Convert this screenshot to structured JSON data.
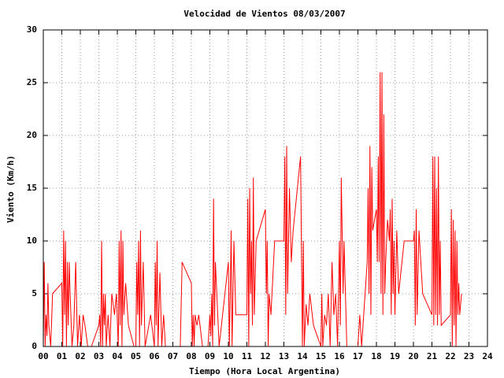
{
  "chart_data": {
    "type": "line",
    "title": "Velocidad de Vientos 08/03/2007",
    "x_label": "Tiempo (Hora Local Argentina)",
    "y_label": "Viento (Km/h)",
    "grid": true,
    "xlim": [
      0,
      24
    ],
    "ylim": [
      0,
      30
    ],
    "xticks": [
      {
        "value": 0,
        "label": "00"
      },
      {
        "value": 1,
        "label": "01"
      },
      {
        "value": 2,
        "label": "02"
      },
      {
        "value": 3,
        "label": "03"
      },
      {
        "value": 4,
        "label": "04"
      },
      {
        "value": 5,
        "label": "05"
      },
      {
        "value": 6,
        "label": "06"
      },
      {
        "value": 7,
        "label": "07"
      },
      {
        "value": 8,
        "label": "08"
      },
      {
        "value": 9,
        "label": "09"
      },
      10,
      11,
      12,
      13,
      14,
      15,
      16,
      17,
      18,
      19,
      20,
      21,
      22,
      23,
      24
    ],
    "yticks": [
      0,
      5,
      10,
      15,
      20,
      25,
      30
    ],
    "x": [
      0.0,
      0.05,
      0.1,
      0.15,
      0.2,
      0.25,
      0.3,
      0.4,
      0.5,
      1.0,
      1.05,
      1.1,
      1.15,
      1.2,
      1.25,
      1.3,
      1.35,
      1.4,
      1.45,
      1.55,
      1.65,
      1.75,
      1.85,
      1.95,
      2.05,
      2.15,
      2.25,
      2.4,
      2.6,
      3.0,
      3.05,
      3.1,
      3.15,
      3.2,
      3.25,
      3.3,
      3.35,
      3.4,
      3.5,
      3.6,
      3.7,
      3.85,
      3.95,
      4.05,
      4.1,
      4.15,
      4.2,
      4.25,
      4.3,
      4.35,
      4.45,
      4.6,
      4.9,
      5.0,
      5.05,
      5.1,
      5.15,
      5.2,
      5.25,
      5.3,
      5.4,
      5.5,
      5.8,
      6.0,
      6.05,
      6.1,
      6.15,
      6.2,
      6.3,
      6.4,
      6.5,
      6.6,
      7.0,
      7.4,
      7.5,
      8.0,
      8.05,
      8.1,
      8.15,
      8.2,
      8.3,
      8.4,
      8.6,
      8.9,
      9.0,
      9.05,
      9.1,
      9.15,
      9.2,
      9.25,
      9.3,
      9.5,
      10.0,
      10.05,
      10.1,
      10.15,
      10.2,
      10.3,
      10.4,
      10.6,
      11.0,
      11.05,
      11.1,
      11.15,
      11.2,
      11.25,
      11.3,
      11.35,
      11.4,
      11.5,
      12.0,
      12.05,
      12.1,
      12.15,
      12.2,
      12.3,
      12.5,
      13.0,
      13.05,
      13.1,
      13.15,
      13.2,
      13.3,
      13.4,
      13.5,
      13.9,
      14.0,
      14.05,
      14.1,
      14.2,
      14.3,
      14.4,
      14.6,
      15.0,
      15.05,
      15.1,
      15.2,
      15.3,
      15.4,
      15.5,
      15.6,
      15.7,
      15.8,
      15.9,
      16.0,
      16.05,
      16.1,
      16.2,
      16.25,
      16.4,
      17.0,
      17.1,
      17.2,
      17.5,
      17.55,
      17.6,
      17.65,
      17.7,
      17.75,
      17.8,
      18.0,
      18.05,
      18.1,
      18.15,
      18.2,
      18.25,
      18.3,
      18.35,
      18.4,
      18.45,
      18.5,
      18.6,
      18.7,
      18.75,
      18.8,
      18.85,
      18.9,
      18.95,
      19.0,
      19.1,
      19.2,
      19.5,
      20.0,
      20.05,
      20.1,
      20.15,
      20.2,
      20.3,
      20.5,
      21.0,
      21.05,
      21.1,
      21.15,
      21.2,
      21.25,
      21.3,
      21.35,
      21.4,
      21.45,
      21.5,
      22.0,
      22.05,
      22.1,
      22.15,
      22.2,
      22.25,
      22.3,
      22.35,
      22.4,
      22.45,
      22.5,
      22.6
    ],
    "series": [
      {
        "color": "#ff0000",
        "values": [
          0,
          8,
          0,
          3,
          1,
          6,
          2,
          0,
          5,
          6,
          0,
          11,
          3,
          10,
          0,
          8,
          2,
          8,
          5,
          0,
          2,
          8,
          0,
          3,
          0,
          3,
          2,
          0,
          0,
          2,
          3,
          0,
          10,
          0,
          5,
          2,
          5,
          0,
          3,
          0,
          5,
          3,
          5,
          0,
          10,
          2,
          11,
          0,
          10,
          3,
          6,
          2,
          0,
          0,
          8,
          3,
          10,
          0,
          11,
          2,
          8,
          0,
          3,
          0,
          8,
          2,
          10,
          0,
          7,
          0,
          3,
          0,
          0,
          0,
          8,
          6,
          0,
          3,
          0,
          3,
          2,
          3,
          0,
          0,
          3,
          1,
          5,
          0,
          14,
          2,
          8,
          0,
          8,
          0,
          5,
          11,
          0,
          10,
          3,
          3,
          3,
          14,
          0,
          15,
          5,
          10,
          2,
          16,
          3,
          10,
          13,
          5,
          10,
          0,
          5,
          3,
          10,
          10,
          18,
          3,
          19,
          5,
          15,
          8,
          11,
          18,
          0,
          10,
          0,
          4,
          2,
          5,
          2,
          0,
          5,
          0,
          3,
          2,
          5,
          0,
          8,
          3,
          5,
          0,
          10,
          2,
          16,
          5,
          10,
          0,
          0,
          3,
          0,
          8,
          15,
          5,
          19,
          3,
          17,
          11,
          13,
          8,
          18,
          8,
          26,
          5,
          26,
          3,
          22,
          5,
          8,
          12,
          10,
          13,
          3,
          14,
          5,
          10,
          3,
          11,
          5,
          10,
          10,
          11,
          2,
          13,
          3,
          11,
          5,
          3,
          18,
          2,
          18,
          3,
          15,
          2,
          18,
          3,
          10,
          2,
          3,
          13,
          0,
          12,
          2,
          11,
          0,
          10,
          3,
          6,
          3,
          5
        ]
      }
    ]
  }
}
